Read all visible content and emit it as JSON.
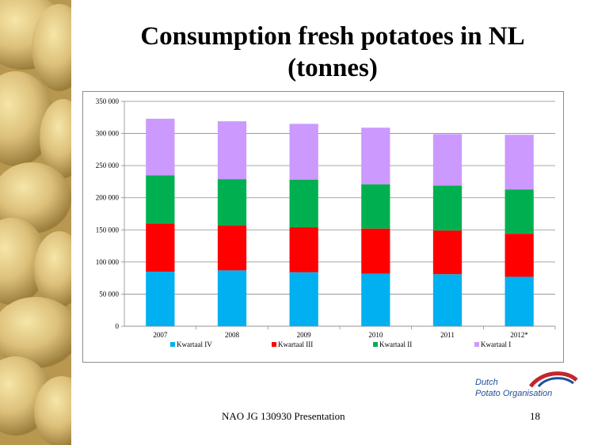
{
  "slide": {
    "title_line1": "Consumption fresh potatoes in NL",
    "title_line2": "(tonnes)",
    "footer": "NAO JG 130930 Presentation",
    "page_number": "18"
  },
  "logo": {
    "line1": "Dutch",
    "line2": "Potato Organisation",
    "colors": {
      "text": "#1f4e9c",
      "arc_red": "#c0272d",
      "arc_blue": "#1f4e9c"
    }
  },
  "chart_data": {
    "type": "bar",
    "stacked": true,
    "categories": [
      "2007",
      "2008",
      "2009",
      "2010",
      "2011",
      "2012*"
    ],
    "series": [
      {
        "name": "Kwartaal IV",
        "color": "#00b0f0",
        "values": [
          85000,
          87000,
          84000,
          82000,
          81000,
          77000
        ]
      },
      {
        "name": "Kwartaal III",
        "color": "#ff0000",
        "values": [
          75000,
          70000,
          70000,
          70000,
          68000,
          67000
        ]
      },
      {
        "name": "Kwartaal II",
        "color": "#00b050",
        "values": [
          75000,
          72000,
          74000,
          69000,
          70000,
          69000
        ]
      },
      {
        "name": "Kwartaal I",
        "color": "#cc99ff",
        "values": [
          88000,
          90000,
          87000,
          88000,
          80000,
          85000
        ]
      }
    ],
    "ylim": [
      0,
      350000
    ],
    "yticks": [
      "0",
      "50 000",
      "100 000",
      "150 000",
      "200 000",
      "250 000",
      "300 000",
      "350 000"
    ],
    "grid": true,
    "legend_position": "bottom"
  }
}
